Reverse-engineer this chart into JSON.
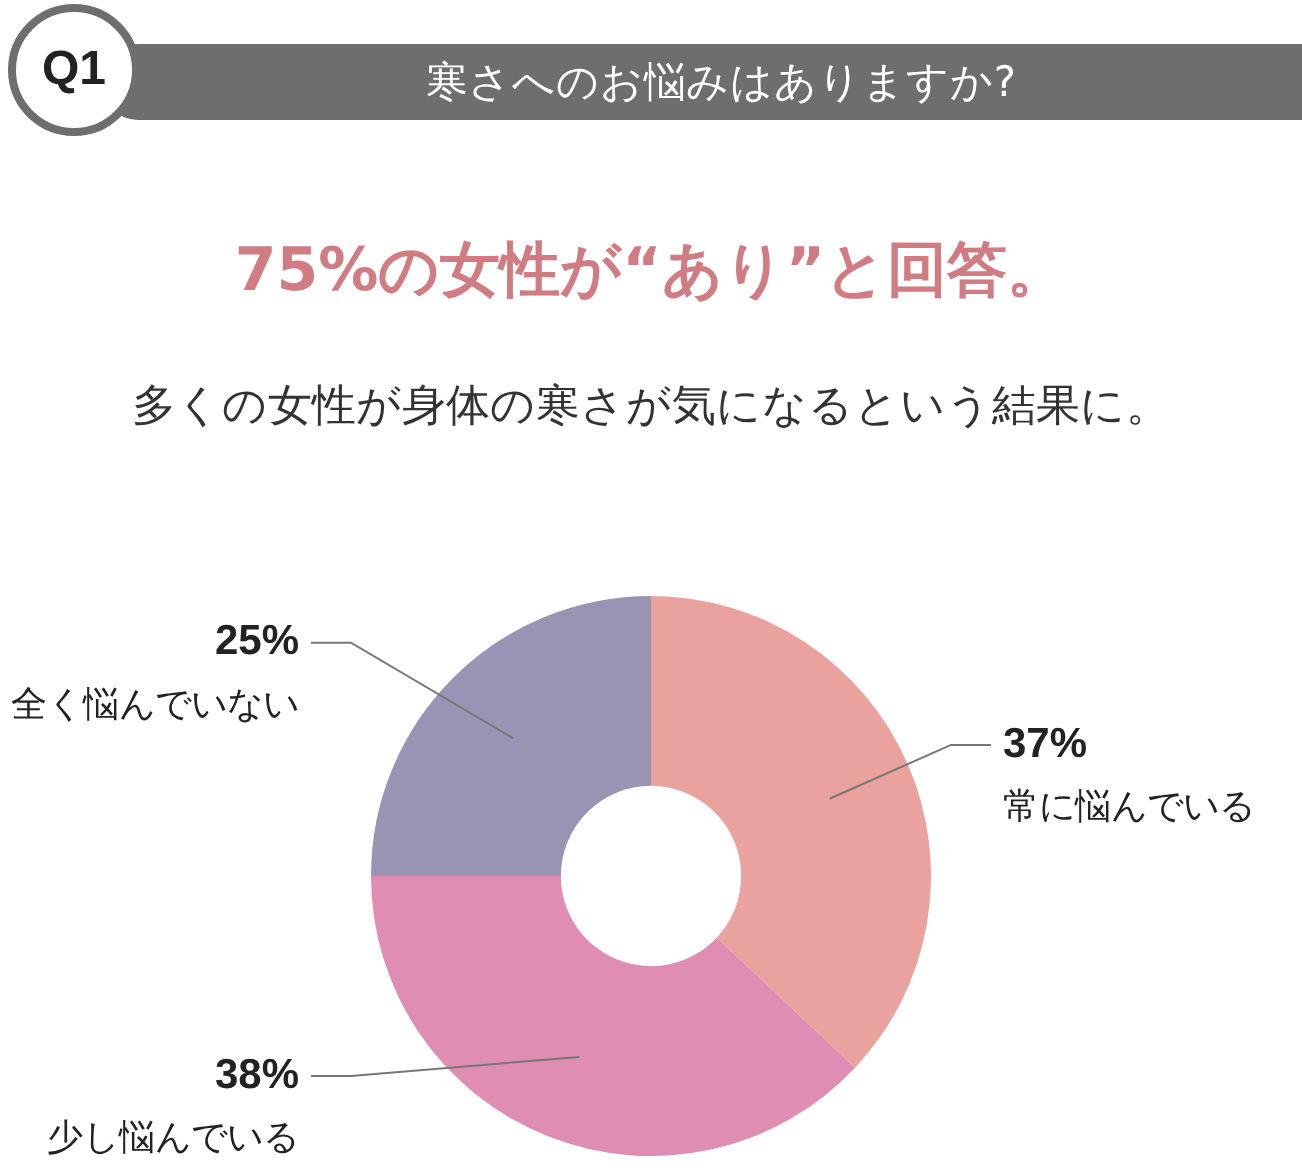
{
  "chart_data": {
    "type": "donut",
    "title": "寒さへのお悩みはありますか?",
    "subtitle": "75%の女性が“あり”と回答。",
    "annotations": [
      "Q1",
      "多くの女性が身体の寒さが気になるという結果に。"
    ],
    "categories": [
      "常に悩んでいる",
      "少し悩んでいる",
      "全く悩んでいない"
    ],
    "values": [
      37,
      38,
      25
    ],
    "colors": [
      "#e9a29d",
      "#e08db3",
      "#9b93b3"
    ],
    "value_labels": [
      "37%",
      "38%",
      "25%"
    ],
    "legend": false
  }
}
